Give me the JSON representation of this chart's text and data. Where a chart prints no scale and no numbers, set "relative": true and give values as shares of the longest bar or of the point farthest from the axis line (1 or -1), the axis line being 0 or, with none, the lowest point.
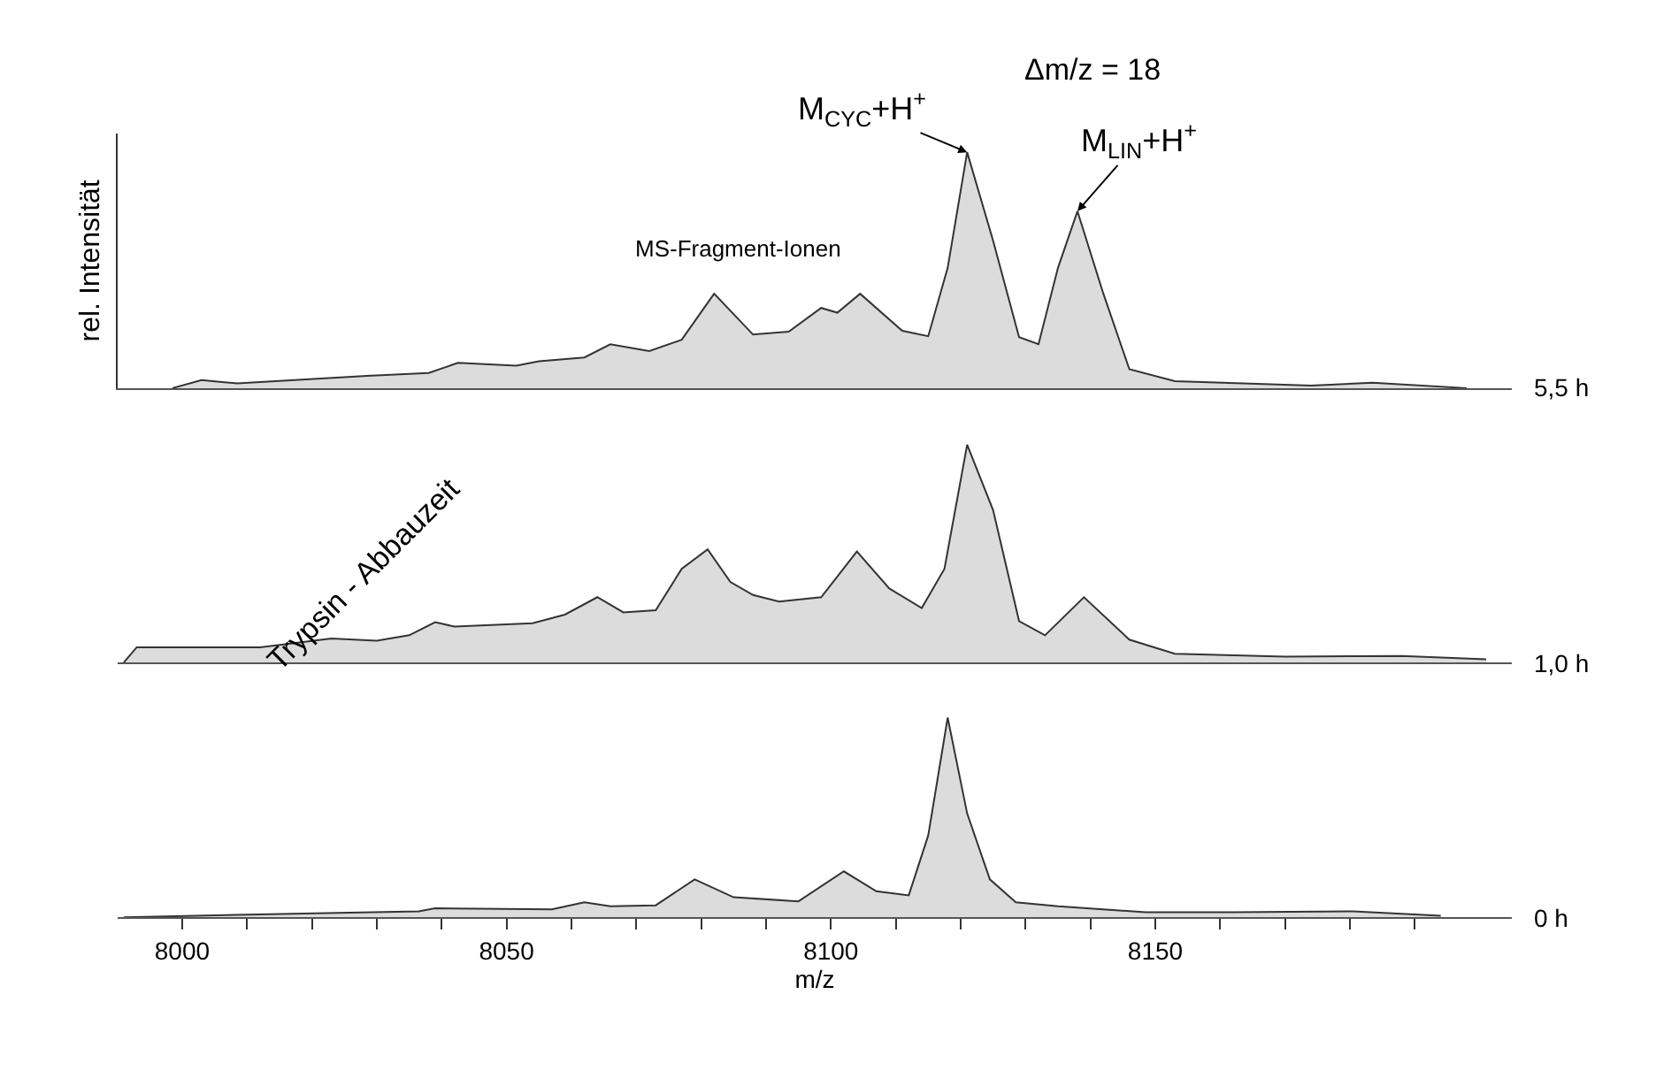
{
  "chart_data": [
    {
      "type": "area",
      "relative": true,
      "ylabel": "rel. Intensität",
      "xlim": [
        7990,
        8205
      ],
      "tick_labels": false,
      "annotations": [
        "Δm/z = 18",
        "MS-Fragment-Ionen",
        {
          "text": "M$_{CYC}$+H$^{+}$",
          "x": 8121,
          "y": 1.0
        },
        {
          "text": "M$_{LIN}$+H$^{+}$",
          "x": 8138,
          "y": 0.75
        }
      ],
      "series": [
        {
          "name": "5,5 h",
          "color": "#dcdcdc",
          "x": [
            7998.5,
            8003,
            8008.5,
            8028.5,
            8038,
            8042.5,
            8051.5,
            8055,
            8062,
            8066,
            8072,
            8077,
            8082,
            8088,
            8093.5,
            8098.5,
            8101,
            8104.5,
            8111,
            8115,
            8118,
            8121,
            8125,
            8129,
            8132,
            8135,
            8138,
            8142,
            8146,
            8153,
            8174,
            8183.5,
            8198
          ],
          "values": [
            0.0,
            0.034,
            0.02,
            0.052,
            0.064,
            0.107,
            0.095,
            0.114,
            0.13,
            0.186,
            0.157,
            0.205,
            0.4,
            0.227,
            0.239,
            0.34,
            0.32,
            0.4,
            0.243,
            0.22,
            0.51,
            1.0,
            0.625,
            0.216,
            0.186,
            0.51,
            0.75,
            0.4,
            0.08,
            0.03,
            0.011,
            0.023,
            0.0
          ]
        }
      ]
    },
    {
      "type": "area",
      "relative": true,
      "xlim": [
        7990,
        8205
      ],
      "tick_labels": false,
      "annotations": [
        "Trypsin - Abbauzeit"
      ],
      "series": [
        {
          "name": "1,0 h",
          "color": "#dcdcdc",
          "x": [
            7991,
            7993,
            8012,
            8023,
            8030,
            8035,
            8039,
            8042,
            8054,
            8059,
            8064,
            8068,
            8073,
            8077,
            8081,
            8084.5,
            8088,
            8092,
            8098.5,
            8104,
            8109,
            8114,
            8117.5,
            8121,
            8125,
            8129,
            8133,
            8139,
            8146,
            8153,
            8170,
            8188,
            8201
          ],
          "values": [
            0.0,
            0.07,
            0.07,
            0.11,
            0.1,
            0.125,
            0.185,
            0.165,
            0.18,
            0.22,
            0.3,
            0.23,
            0.24,
            0.43,
            0.52,
            0.37,
            0.31,
            0.28,
            0.3,
            0.51,
            0.34,
            0.25,
            0.43,
            1.0,
            0.7,
            0.19,
            0.125,
            0.3,
            0.105,
            0.04,
            0.027,
            0.03,
            0.015
          ]
        }
      ]
    },
    {
      "type": "area",
      "relative": true,
      "xlabel": "m/z",
      "xlim": [
        7990,
        8205
      ],
      "tick_labels": "x",
      "xticks": [
        8000,
        {
          "value": 8010,
          "label": null
        },
        {
          "value": 8020,
          "label": null
        },
        {
          "value": 8030,
          "label": null
        },
        {
          "value": 8040,
          "label": null
        },
        8050,
        {
          "value": 8060,
          "label": null
        },
        {
          "value": 8070,
          "label": null
        },
        {
          "value": 8080,
          "label": null
        },
        {
          "value": 8090,
          "label": null
        },
        8100,
        {
          "value": 8110,
          "label": null
        },
        {
          "value": 8120,
          "label": null
        },
        {
          "value": 8130,
          "label": null
        },
        {
          "value": 8140,
          "label": null
        },
        8150,
        {
          "value": 8160,
          "label": null
        },
        {
          "value": 8170,
          "label": null
        },
        {
          "value": 8180,
          "label": null
        },
        {
          "value": 8190,
          "label": null
        }
      ],
      "series": [
        {
          "name": "0 h",
          "color": "#dcdcdc",
          "x": [
            7991,
            8020.5,
            8036.5,
            8039,
            8057,
            8062,
            8066,
            8073,
            8079,
            8085,
            8095,
            8102,
            8107,
            8112,
            8115,
            8118,
            8121,
            8124.5,
            8128.5,
            8135,
            8148.5,
            8162,
            8180.5,
            8194
          ],
          "values": [
            0.0,
            0.02,
            0.03,
            0.045,
            0.04,
            0.075,
            0.055,
            0.06,
            0.19,
            0.1,
            0.08,
            0.23,
            0.13,
            0.11,
            0.41,
            1.0,
            0.52,
            0.19,
            0.075,
            0.055,
            0.025,
            0.025,
            0.03,
            0.007
          ]
        }
      ]
    }
  ]
}
